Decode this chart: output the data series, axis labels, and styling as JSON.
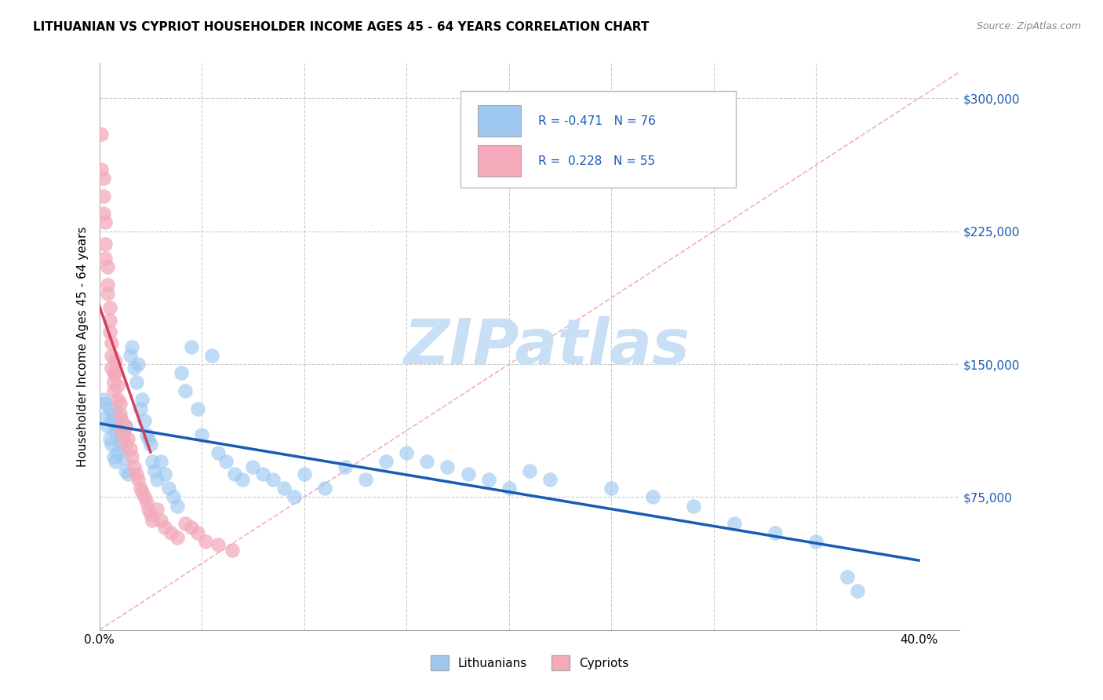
{
  "title": "LITHUANIAN VS CYPRIOT HOUSEHOLDER INCOME AGES 45 - 64 YEARS CORRELATION CHART",
  "source": "Source: ZipAtlas.com",
  "ylabel": "Householder Income Ages 45 - 64 years",
  "xlim": [
    0.0,
    0.42
  ],
  "ylim": [
    0,
    320000
  ],
  "yticks": [
    0,
    75000,
    150000,
    225000,
    300000
  ],
  "ytick_labels": [
    "",
    "$75,000",
    "$150,000",
    "$225,000",
    "$300,000"
  ],
  "xticks": [
    0.0,
    0.05,
    0.1,
    0.15,
    0.2,
    0.25,
    0.3,
    0.35,
    0.4
  ],
  "xtick_labels": [
    "0.0%",
    "",
    "",
    "",
    "",
    "",
    "",
    "",
    "40.0%"
  ],
  "legend_R_lith": "-0.471",
  "legend_N_lith": "76",
  "legend_R_cypr": "0.228",
  "legend_N_cypr": "55",
  "blue_color": "#9EC8F0",
  "pink_color": "#F4AABB",
  "blue_line_color": "#1a5ab5",
  "pink_line_color": "#d44060",
  "diag_color": "#F0B0C0",
  "grid_color": "#cccccc",
  "watermark_color": "#c8dff5",
  "lith_x": [
    0.002,
    0.003,
    0.003,
    0.004,
    0.005,
    0.005,
    0.006,
    0.006,
    0.007,
    0.007,
    0.008,
    0.008,
    0.009,
    0.009,
    0.01,
    0.01,
    0.011,
    0.012,
    0.013,
    0.013,
    0.014,
    0.015,
    0.016,
    0.017,
    0.018,
    0.019,
    0.02,
    0.021,
    0.022,
    0.023,
    0.024,
    0.025,
    0.026,
    0.027,
    0.028,
    0.03,
    0.032,
    0.034,
    0.036,
    0.038,
    0.04,
    0.042,
    0.045,
    0.048,
    0.05,
    0.055,
    0.058,
    0.062,
    0.066,
    0.07,
    0.075,
    0.08,
    0.085,
    0.09,
    0.095,
    0.1,
    0.11,
    0.12,
    0.13,
    0.14,
    0.15,
    0.16,
    0.17,
    0.18,
    0.19,
    0.2,
    0.21,
    0.22,
    0.25,
    0.27,
    0.29,
    0.31,
    0.33,
    0.35,
    0.365,
    0.37
  ],
  "lith_y": [
    130000,
    128000,
    120000,
    115000,
    125000,
    108000,
    118000,
    105000,
    122000,
    98000,
    112000,
    95000,
    115000,
    100000,
    120000,
    105000,
    110000,
    97000,
    90000,
    115000,
    88000,
    155000,
    160000,
    148000,
    140000,
    150000,
    125000,
    130000,
    118000,
    110000,
    108000,
    105000,
    95000,
    90000,
    85000,
    95000,
    88000,
    80000,
    75000,
    70000,
    145000,
    135000,
    160000,
    125000,
    110000,
    155000,
    100000,
    95000,
    88000,
    85000,
    92000,
    88000,
    85000,
    80000,
    75000,
    88000,
    80000,
    92000,
    85000,
    95000,
    100000,
    95000,
    92000,
    88000,
    85000,
    80000,
    90000,
    85000,
    80000,
    75000,
    70000,
    60000,
    55000,
    50000,
    30000,
    22000
  ],
  "cypr_x": [
    0.001,
    0.001,
    0.002,
    0.002,
    0.002,
    0.003,
    0.003,
    0.003,
    0.004,
    0.004,
    0.004,
    0.005,
    0.005,
    0.005,
    0.006,
    0.006,
    0.006,
    0.007,
    0.007,
    0.007,
    0.008,
    0.008,
    0.009,
    0.009,
    0.01,
    0.01,
    0.011,
    0.011,
    0.012,
    0.013,
    0.013,
    0.014,
    0.015,
    0.016,
    0.017,
    0.018,
    0.019,
    0.02,
    0.021,
    0.022,
    0.023,
    0.024,
    0.025,
    0.026,
    0.028,
    0.03,
    0.032,
    0.035,
    0.038,
    0.042,
    0.045,
    0.048,
    0.052,
    0.058,
    0.065
  ],
  "cypr_y": [
    280000,
    260000,
    255000,
    245000,
    235000,
    230000,
    218000,
    210000,
    205000,
    195000,
    190000,
    182000,
    175000,
    168000,
    162000,
    155000,
    148000,
    145000,
    140000,
    135000,
    152000,
    145000,
    138000,
    130000,
    128000,
    122000,
    118000,
    112000,
    110000,
    105000,
    115000,
    108000,
    102000,
    98000,
    92000,
    88000,
    85000,
    80000,
    78000,
    75000,
    72000,
    68000,
    65000,
    62000,
    68000,
    62000,
    58000,
    55000,
    52000,
    60000,
    58000,
    55000,
    50000,
    48000,
    45000
  ]
}
